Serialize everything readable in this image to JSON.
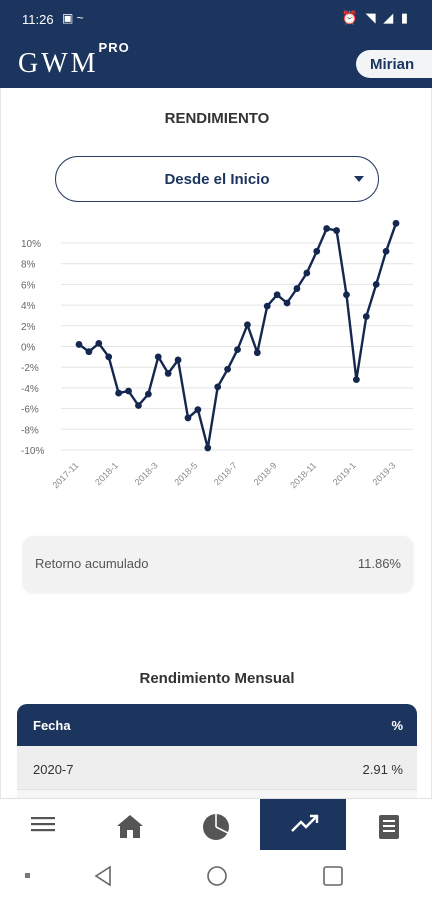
{
  "status": {
    "time": "11:26"
  },
  "header": {
    "logo_main": "GWM",
    "logo_sup": "PRO",
    "user_name": "Mirian"
  },
  "performance": {
    "title": "RENDIMIENTO",
    "period_selector": "Desde el Inicio",
    "summary_label": "Retorno acumulado",
    "summary_value": "11.86%"
  },
  "chart_data": {
    "type": "line",
    "title": "",
    "xlabel": "",
    "ylabel": "",
    "ylim": [
      -10,
      10
    ],
    "y_ticks": [
      "10%",
      "8%",
      "6%",
      "4%",
      "2%",
      "0%",
      "-2%",
      "-4%",
      "-6%",
      "-8%",
      "-10%"
    ],
    "x_tick_labels": [
      "2017-11",
      "2018-1",
      "2018-3",
      "2018-5",
      "2018-7",
      "2018-9",
      "2018-11",
      "2019-1",
      "2019-3"
    ],
    "grid": true,
    "series": [
      {
        "color": "#14274e",
        "values": [
          0.2,
          -0.5,
          0.3,
          -1.0,
          -4.5,
          -4.3,
          -5.7,
          -4.6,
          -1.0,
          -2.6,
          -1.3,
          -6.9,
          -6.1,
          -9.8,
          -3.9,
          -2.2,
          -0.3,
          2.1,
          -0.6,
          3.9,
          5.0,
          4.2,
          5.6,
          7.1,
          9.2,
          11.4,
          11.2,
          5.0,
          -3.2,
          2.9,
          6.0,
          9.2,
          11.9
        ]
      }
    ]
  },
  "monthly": {
    "title": "Rendimiento Mensual",
    "col_date": "Fecha",
    "col_pct": "%",
    "rows": [
      {
        "date": "2020-7",
        "pct": "2.91 %"
      }
    ]
  },
  "nav": {
    "active": "performance"
  }
}
